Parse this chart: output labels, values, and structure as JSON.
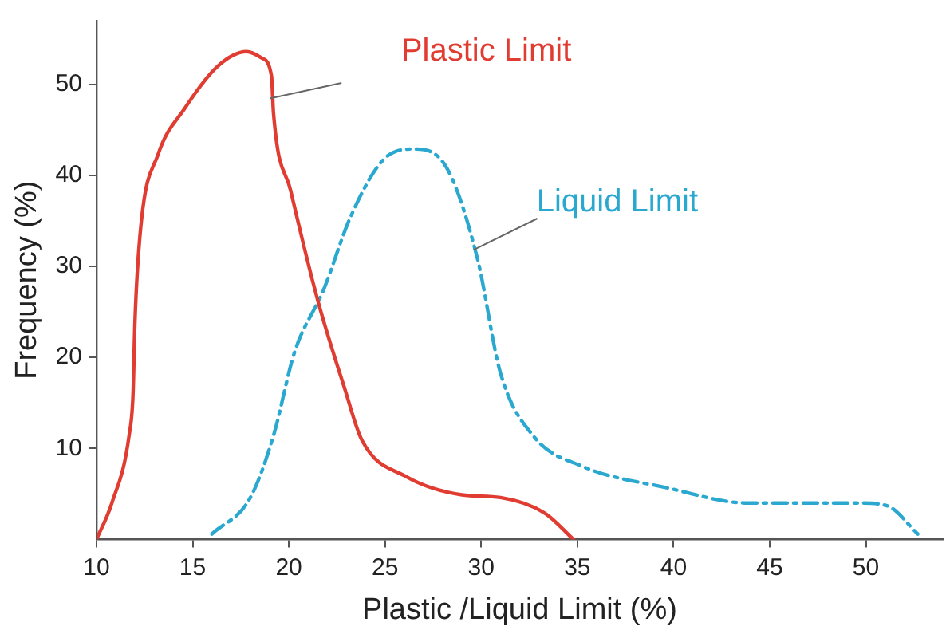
{
  "chart_data": {
    "type": "line",
    "xlabel": "Plastic /Liquid Limit (%)",
    "ylabel": "Frequency (%)",
    "xlim": [
      10,
      54
    ],
    "xticks": [
      10,
      15,
      20,
      25,
      30,
      35,
      40,
      45,
      50
    ],
    "ylim": [
      0,
      57
    ],
    "yticks": [
      10,
      20,
      30,
      40,
      50
    ],
    "grid": false,
    "legend": false,
    "marker": "none",
    "series": [
      {
        "name": "Plastic Limit",
        "color": "#e03c31",
        "line_style": "solid",
        "x": [
          10,
          10.8,
          11.7,
          11.9,
          12.0,
          12.3,
          13.2,
          14.6,
          16.3,
          17.8,
          18.6,
          19.1,
          19.2,
          20.1,
          21.5,
          22.9,
          23.8,
          26.1,
          29.0,
          31.0,
          33.3,
          34.8
        ],
        "values": [
          0,
          4,
          11.5,
          16,
          24,
          34.3,
          42.3,
          47.4,
          52,
          53.6,
          52.9,
          50.9,
          46.9,
          38.3,
          26.3,
          16.6,
          10.9,
          6.9,
          4.9,
          4.6,
          2.9,
          0
        ]
      },
      {
        "name": "Liquid Limit",
        "color": "#2aa8cf",
        "line_style": "dashed",
        "x": [
          16.0,
          18.0,
          19.2,
          20.3,
          21.8,
          23.2,
          24.9,
          26.5,
          28.1,
          29.8,
          31.0,
          32.7,
          35.3,
          39.6,
          43.9,
          49.7,
          51.1,
          52.7
        ],
        "values": [
          0.6,
          4.6,
          11.4,
          20.6,
          27.4,
          35.4,
          41.7,
          42.9,
          41.2,
          30.9,
          18.3,
          11.4,
          8.0,
          5.7,
          4.0,
          4.0,
          3.7,
          0.6
        ]
      }
    ]
  }
}
